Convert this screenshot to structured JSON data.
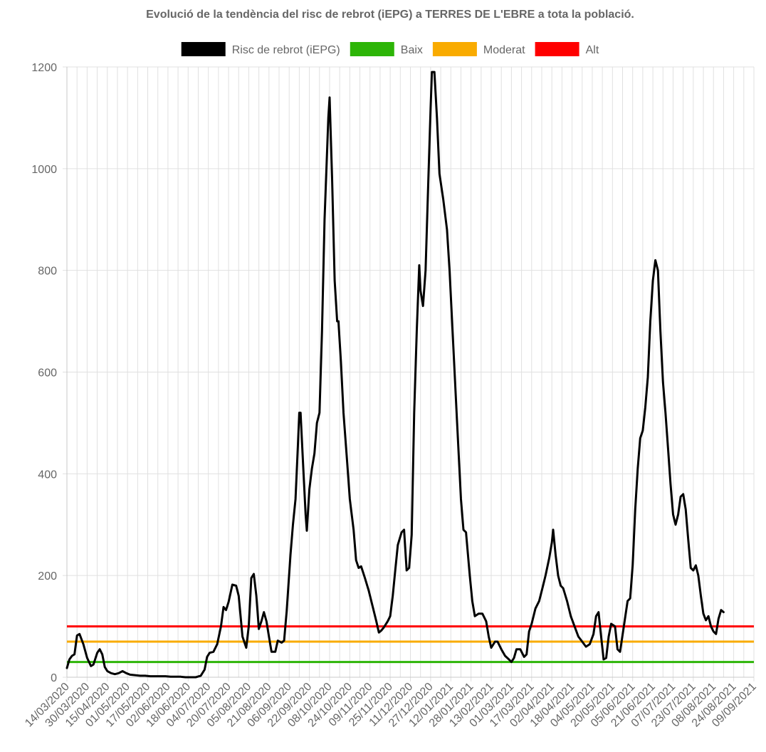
{
  "chart_data": {
    "type": "line",
    "title": "Evolució de la tendència del risc de rebrot (iEPG) a TERRES DE L'EBRE a tota la població.",
    "ylim": [
      0,
      1200
    ],
    "yticks": [
      0,
      200,
      400,
      600,
      800,
      1000,
      1200
    ],
    "grid": true,
    "legend_position": "top",
    "x_start": "14/03/2020",
    "x_tick_labels": [
      "14/03/2020",
      "30/03/2020",
      "15/04/2020",
      "01/05/2020",
      "17/05/2020",
      "02/06/2020",
      "18/06/2020",
      "04/07/2020",
      "20/07/2020",
      "05/08/2020",
      "21/08/2020",
      "06/09/2020",
      "22/09/2020",
      "08/10/2020",
      "24/10/2020",
      "09/11/2020",
      "25/11/2020",
      "11/12/2020",
      "27/12/2020",
      "12/01/2021",
      "28/01/2021",
      "13/02/2021",
      "01/03/2021",
      "17/03/2021",
      "02/04/2021",
      "18/04/2021",
      "04/05/2021",
      "20/05/2021",
      "05/06/2021",
      "21/06/2021",
      "07/07/2021",
      "23/07/2021",
      "08/08/2021",
      "24/08/2021",
      "09/09/2021"
    ],
    "series": [
      {
        "name": "Risc de rebrot (iEPG)",
        "color": "#000000",
        "points": [
          [
            "14/03/2020",
            18
          ],
          [
            "16/03/2020",
            35
          ],
          [
            "18/03/2020",
            42
          ],
          [
            "20/03/2020",
            45
          ],
          [
            "22/03/2020",
            82
          ],
          [
            "24/03/2020",
            85
          ],
          [
            "27/03/2020",
            65
          ],
          [
            "30/03/2020",
            38
          ],
          [
            "02/04/2020",
            22
          ],
          [
            "04/04/2020",
            25
          ],
          [
            "07/04/2020",
            48
          ],
          [
            "09/04/2020",
            55
          ],
          [
            "11/04/2020",
            45
          ],
          [
            "13/04/2020",
            20
          ],
          [
            "15/04/2020",
            12
          ],
          [
            "18/04/2020",
            8
          ],
          [
            "21/04/2020",
            6
          ],
          [
            "24/04/2020",
            8
          ],
          [
            "27/04/2020",
            12
          ],
          [
            "30/04/2020",
            8
          ],
          [
            "03/05/2020",
            5
          ],
          [
            "07/05/2020",
            4
          ],
          [
            "11/05/2020",
            3
          ],
          [
            "15/05/2020",
            3
          ],
          [
            "19/05/2020",
            2
          ],
          [
            "23/05/2020",
            2
          ],
          [
            "27/05/2020",
            2
          ],
          [
            "31/05/2020",
            2
          ],
          [
            "04/06/2020",
            1
          ],
          [
            "08/06/2020",
            1
          ],
          [
            "12/06/2020",
            1
          ],
          [
            "16/06/2020",
            0
          ],
          [
            "20/06/2020",
            0
          ],
          [
            "24/06/2020",
            0
          ],
          [
            "28/06/2020",
            3
          ],
          [
            "01/07/2020",
            15
          ],
          [
            "03/07/2020",
            40
          ],
          [
            "05/07/2020",
            48
          ],
          [
            "08/07/2020",
            50
          ],
          [
            "11/07/2020",
            65
          ],
          [
            "14/07/2020",
            100
          ],
          [
            "16/07/2020",
            138
          ],
          [
            "18/07/2020",
            132
          ],
          [
            "20/07/2020",
            148
          ],
          [
            "23/07/2020",
            182
          ],
          [
            "26/07/2020",
            180
          ],
          [
            "28/07/2020",
            160
          ],
          [
            "31/07/2020",
            80
          ],
          [
            "03/08/2020",
            58
          ],
          [
            "05/08/2020",
            100
          ],
          [
            "07/08/2020",
            195
          ],
          [
            "09/08/2020",
            203
          ],
          [
            "11/08/2020",
            160
          ],
          [
            "13/08/2020",
            95
          ],
          [
            "15/08/2020",
            110
          ],
          [
            "17/08/2020",
            128
          ],
          [
            "19/08/2020",
            110
          ],
          [
            "21/08/2020",
            80
          ],
          [
            "23/08/2020",
            50
          ],
          [
            "26/08/2020",
            50
          ],
          [
            "28/08/2020",
            72
          ],
          [
            "31/08/2020",
            68
          ],
          [
            "02/09/2020",
            72
          ],
          [
            "04/09/2020",
            130
          ],
          [
            "07/09/2020",
            240
          ],
          [
            "09/09/2020",
            300
          ],
          [
            "11/09/2020",
            350
          ],
          [
            "13/09/2020",
            460
          ],
          [
            "14/09/2020",
            520
          ],
          [
            "15/09/2020",
            520
          ],
          [
            "17/09/2020",
            420
          ],
          [
            "19/09/2020",
            320
          ],
          [
            "20/09/2020",
            288
          ],
          [
            "22/09/2020",
            370
          ],
          [
            "24/09/2020",
            410
          ],
          [
            "26/09/2020",
            440
          ],
          [
            "28/09/2020",
            500
          ],
          [
            "30/09/2020",
            520
          ],
          [
            "02/10/2020",
            680
          ],
          [
            "04/10/2020",
            900
          ],
          [
            "07/10/2020",
            1100
          ],
          [
            "08/10/2020",
            1140
          ],
          [
            "10/10/2020",
            980
          ],
          [
            "12/10/2020",
            780
          ],
          [
            "14/10/2020",
            700
          ],
          [
            "15/10/2020",
            700
          ],
          [
            "17/10/2020",
            620
          ],
          [
            "19/10/2020",
            520
          ],
          [
            "22/10/2020",
            420
          ],
          [
            "24/10/2020",
            350
          ],
          [
            "27/10/2020",
            290
          ],
          [
            "29/10/2020",
            230
          ],
          [
            "31/10/2020",
            215
          ],
          [
            "02/11/2020",
            218
          ],
          [
            "05/11/2020",
            195
          ],
          [
            "08/11/2020",
            170
          ],
          [
            "11/11/2020",
            140
          ],
          [
            "14/11/2020",
            110
          ],
          [
            "16/11/2020",
            88
          ],
          [
            "18/11/2020",
            92
          ],
          [
            "20/11/2020",
            98
          ],
          [
            "23/11/2020",
            110
          ],
          [
            "25/11/2020",
            120
          ],
          [
            "27/11/2020",
            160
          ],
          [
            "29/11/2020",
            210
          ],
          [
            "01/12/2020",
            260
          ],
          [
            "04/12/2020",
            285
          ],
          [
            "06/12/2020",
            290
          ],
          [
            "08/12/2020",
            210
          ],
          [
            "10/12/2020",
            215
          ],
          [
            "12/12/2020",
            280
          ],
          [
            "14/12/2020",
            520
          ],
          [
            "16/12/2020",
            680
          ],
          [
            "18/12/2020",
            810
          ],
          [
            "19/12/2020",
            760
          ],
          [
            "21/12/2020",
            730
          ],
          [
            "23/12/2020",
            800
          ],
          [
            "25/12/2020",
            960
          ],
          [
            "27/12/2020",
            1120
          ],
          [
            "28/12/2020",
            1190
          ],
          [
            "30/12/2020",
            1190
          ],
          [
            "01/01/2021",
            1100
          ],
          [
            "03/01/2021",
            990
          ],
          [
            "06/01/2021",
            940
          ],
          [
            "09/01/2021",
            880
          ],
          [
            "11/01/2021",
            800
          ],
          [
            "14/01/2021",
            650
          ],
          [
            "17/01/2021",
            500
          ],
          [
            "20/01/2021",
            350
          ],
          [
            "22/01/2021",
            290
          ],
          [
            "24/01/2021",
            285
          ],
          [
            "27/01/2021",
            200
          ],
          [
            "29/01/2021",
            150
          ],
          [
            "31/01/2021",
            120
          ],
          [
            "03/02/2021",
            125
          ],
          [
            "06/02/2021",
            125
          ],
          [
            "09/02/2021",
            110
          ],
          [
            "11/02/2021",
            80
          ],
          [
            "13/02/2021",
            58
          ],
          [
            "16/02/2021",
            70
          ],
          [
            "18/02/2021",
            70
          ],
          [
            "21/02/2021",
            55
          ],
          [
            "24/02/2021",
            42
          ],
          [
            "27/02/2021",
            35
          ],
          [
            "01/03/2021",
            30
          ],
          [
            "03/03/2021",
            38
          ],
          [
            "05/03/2021",
            55
          ],
          [
            "08/03/2021",
            55
          ],
          [
            "11/03/2021",
            40
          ],
          [
            "13/03/2021",
            45
          ],
          [
            "15/03/2021",
            90
          ],
          [
            "17/03/2021",
            105
          ],
          [
            "20/03/2021",
            135
          ],
          [
            "23/03/2021",
            150
          ],
          [
            "26/03/2021",
            180
          ],
          [
            "28/03/2021",
            200
          ],
          [
            "31/03/2021",
            235
          ],
          [
            "02/04/2021",
            265
          ],
          [
            "03/04/2021",
            290
          ],
          [
            "05/04/2021",
            240
          ],
          [
            "07/04/2021",
            200
          ],
          [
            "09/04/2021",
            180
          ],
          [
            "11/04/2021",
            175
          ],
          [
            "14/04/2021",
            150
          ],
          [
            "17/04/2021",
            120
          ],
          [
            "20/04/2021",
            100
          ],
          [
            "23/04/2021",
            80
          ],
          [
            "26/04/2021",
            70
          ],
          [
            "29/04/2021",
            60
          ],
          [
            "02/05/2021",
            65
          ],
          [
            "05/05/2021",
            85
          ],
          [
            "07/05/2021",
            120
          ],
          [
            "09/05/2021",
            128
          ],
          [
            "11/05/2021",
            80
          ],
          [
            "13/05/2021",
            35
          ],
          [
            "15/05/2021",
            38
          ],
          [
            "17/05/2021",
            80
          ],
          [
            "19/05/2021",
            105
          ],
          [
            "22/05/2021",
            100
          ],
          [
            "24/05/2021",
            55
          ],
          [
            "26/05/2021",
            50
          ],
          [
            "29/05/2021",
            100
          ],
          [
            "01/06/2021",
            150
          ],
          [
            "03/06/2021",
            155
          ],
          [
            "05/06/2021",
            220
          ],
          [
            "07/06/2021",
            330
          ],
          [
            "09/06/2021",
            410
          ],
          [
            "11/06/2021",
            470
          ],
          [
            "13/06/2021",
            485
          ],
          [
            "15/06/2021",
            530
          ],
          [
            "17/06/2021",
            590
          ],
          [
            "19/06/2021",
            700
          ],
          [
            "21/06/2021",
            780
          ],
          [
            "23/06/2021",
            820
          ],
          [
            "25/06/2021",
            800
          ],
          [
            "27/06/2021",
            680
          ],
          [
            "29/06/2021",
            580
          ],
          [
            "01/07/2021",
            520
          ],
          [
            "03/07/2021",
            450
          ],
          [
            "05/07/2021",
            380
          ],
          [
            "07/07/2021",
            320
          ],
          [
            "09/07/2021",
            300
          ],
          [
            "11/07/2021",
            320
          ],
          [
            "13/07/2021",
            355
          ],
          [
            "15/07/2021",
            360
          ],
          [
            "17/07/2021",
            330
          ],
          [
            "19/07/2021",
            270
          ],
          [
            "21/07/2021",
            215
          ],
          [
            "23/07/2021",
            210
          ],
          [
            "25/07/2021",
            220
          ],
          [
            "27/07/2021",
            200
          ],
          [
            "29/07/2021",
            160
          ],
          [
            "31/07/2021",
            125
          ],
          [
            "02/08/2021",
            112
          ],
          [
            "04/08/2021",
            120
          ],
          [
            "06/08/2021",
            100
          ],
          [
            "08/08/2021",
            90
          ],
          [
            "10/08/2021",
            85
          ],
          [
            "12/08/2021",
            115
          ],
          [
            "14/08/2021",
            132
          ],
          [
            "16/08/2021",
            128
          ]
        ]
      },
      {
        "name": "Baix",
        "color": "#2db507",
        "value": 30
      },
      {
        "name": "Moderat",
        "color": "#f9ab00",
        "value": 70
      },
      {
        "name": "Alt",
        "color": "#ff0000",
        "value": 100
      }
    ]
  }
}
